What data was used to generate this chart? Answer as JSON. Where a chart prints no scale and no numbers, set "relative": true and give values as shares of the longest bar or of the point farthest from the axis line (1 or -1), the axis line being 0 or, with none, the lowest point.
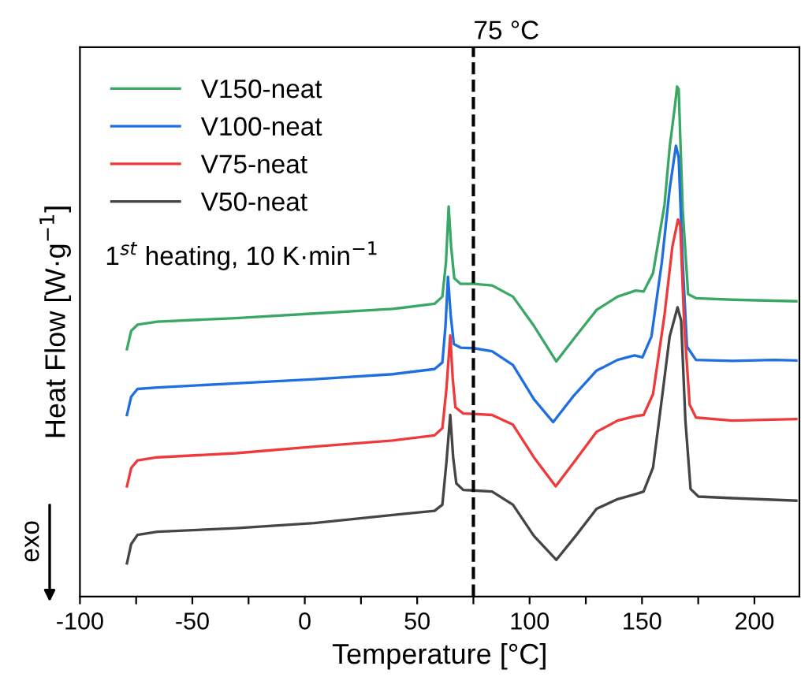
{
  "chart_data": {
    "type": "line",
    "relative": true,
    "xlabel": "Temperature [°C]",
    "ylabel": "Heat Flow [W·g$^{−1}$]",
    "xlim": [
      -100,
      220
    ],
    "xticks": [
      -100,
      {
        "value": -75,
        "label": null
      },
      -50,
      {
        "value": -25,
        "label": null
      },
      0,
      {
        "value": 25,
        "label": null
      },
      50,
      {
        "value": 75,
        "label": null
      },
      100,
      {
        "value": 125,
        "label": null
      },
      150,
      {
        "value": 175,
        "label": null
      },
      200
    ],
    "tick_labels": "x",
    "grid": false,
    "legend": "top left",
    "line_style": "solid",
    "marker": "none",
    "ref_lines": [
      {
        "axis": "x",
        "value": 75,
        "label": "75 °C",
        "color": "#000000",
        "line_style": "dashed"
      }
    ],
    "annotations": [
      "1$^{st}$ heating, 10 K·min$^{−1}$",
      "exo"
    ],
    "series": [
      {
        "name": "V150-neat",
        "color": "#3aa864",
        "x": [
          -79.1,
          -77.2,
          -74.4,
          -65.6,
          -30.7,
          4.2,
          39.1,
          57.7,
          61.2,
          62.8,
          64.0,
          65.1,
          66.5,
          69.3,
          75.1,
          83.3,
          92.6,
          101.9,
          111.9,
          120.5,
          129.8,
          139.1,
          147.2,
          150.7,
          154.9,
          160.0,
          162.3,
          164.7,
          165.6,
          166.3,
          168.1,
          170.5,
          174.0,
          190.2,
          218.6
        ],
        "values": [
          0.485,
          0.521,
          0.533,
          0.539,
          0.546,
          0.555,
          0.564,
          0.574,
          0.588,
          0.655,
          0.765,
          0.686,
          0.624,
          0.613,
          0.613,
          0.61,
          0.588,
          0.531,
          0.461,
          0.51,
          0.562,
          0.588,
          0.6,
          0.598,
          0.634,
          0.768,
          0.881,
          0.964,
          1.0,
          0.995,
          0.758,
          0.593,
          0.585,
          0.582,
          0.579
        ]
      },
      {
        "name": "V100-neat",
        "color": "#1f6fe0",
        "x": [
          -79.1,
          -77.2,
          -74.4,
          -65.6,
          -30.7,
          4.2,
          39.1,
          57.7,
          61.2,
          62.6,
          63.7,
          64.9,
          66.3,
          69.3,
          75.1,
          83.3,
          92.6,
          101.9,
          110.5,
          119.3,
          129.8,
          139.1,
          146.7,
          150.2,
          154.2,
          158.8,
          162.3,
          165.1,
          166.3,
          168.1,
          170.0,
          174.0,
          190.2,
          208.8,
          218.6
        ],
        "values": [
          0.356,
          0.392,
          0.407,
          0.41,
          0.418,
          0.426,
          0.436,
          0.446,
          0.459,
          0.531,
          0.627,
          0.552,
          0.495,
          0.488,
          0.487,
          0.481,
          0.454,
          0.387,
          0.342,
          0.392,
          0.443,
          0.464,
          0.473,
          0.469,
          0.51,
          0.655,
          0.799,
          0.884,
          0.861,
          0.655,
          0.49,
          0.464,
          0.462,
          0.464,
          0.463
        ]
      },
      {
        "name": "V75-neat",
        "color": "#ee3a3a",
        "x": [
          -79.1,
          -77.2,
          -74.4,
          -65.6,
          -30.7,
          4.2,
          39.1,
          57.7,
          61.2,
          63.0,
          64.7,
          65.8,
          67.0,
          70.5,
          75.1,
          83.3,
          92.6,
          101.9,
          111.6,
          120.5,
          129.8,
          139.1,
          147.2,
          150.7,
          154.9,
          160.0,
          163.5,
          166.0,
          167.0,
          168.8,
          171.2,
          174.0,
          190.2,
          218.6
        ],
        "values": [
          0.216,
          0.252,
          0.267,
          0.273,
          0.281,
          0.294,
          0.306,
          0.316,
          0.33,
          0.407,
          0.512,
          0.428,
          0.371,
          0.359,
          0.358,
          0.356,
          0.337,
          0.273,
          0.216,
          0.268,
          0.323,
          0.345,
          0.354,
          0.356,
          0.397,
          0.552,
          0.686,
          0.739,
          0.727,
          0.531,
          0.376,
          0.351,
          0.345,
          0.348
        ]
      },
      {
        "name": "V50-neat",
        "color": "#454545",
        "x": [
          -79.1,
          -77.2,
          -74.4,
          -65.6,
          -30.7,
          4.2,
          39.1,
          57.7,
          61.2,
          63.0,
          64.7,
          66.0,
          67.4,
          70.5,
          75.1,
          83.3,
          92.6,
          101.9,
          111.9,
          120.5,
          129.8,
          139.1,
          147.2,
          150.7,
          154.9,
          158.8,
          162.3,
          165.8,
          167.4,
          169.3,
          171.6,
          175.1,
          190.2,
          218.6
        ],
        "values": [
          0.065,
          0.103,
          0.121,
          0.127,
          0.134,
          0.144,
          0.16,
          0.168,
          0.18,
          0.263,
          0.356,
          0.273,
          0.222,
          0.209,
          0.208,
          0.206,
          0.18,
          0.119,
          0.072,
          0.119,
          0.172,
          0.191,
          0.201,
          0.206,
          0.253,
          0.387,
          0.51,
          0.567,
          0.541,
          0.345,
          0.211,
          0.196,
          0.193,
          0.188
        ]
      }
    ]
  }
}
